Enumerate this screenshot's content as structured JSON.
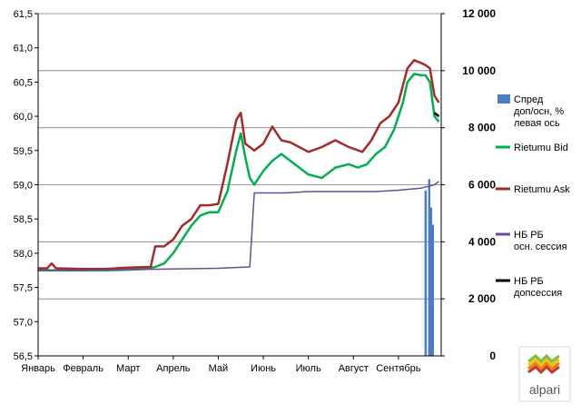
{
  "chart_data": {
    "type": "line",
    "x_categories": [
      "Январь",
      "Февраль",
      "Март",
      "Апрель",
      "Май",
      "Июнь",
      "Июль",
      "Август",
      "Сентябрь"
    ],
    "y_left": {
      "range": [
        56.5,
        61.5
      ],
      "ticks": [
        "56,5",
        "57,0",
        "57,5",
        "58,0",
        "58,5",
        "59,0",
        "59,5",
        "60,0",
        "60,5",
        "61,0",
        "61,5"
      ]
    },
    "y_right": {
      "range": [
        0,
        12000
      ],
      "ticks": [
        "0",
        "2 000",
        "4 000",
        "6 000",
        "8 000",
        "10 000",
        "12 000"
      ]
    },
    "grid": "horizontal, right-axis ticks",
    "legend_position": "right",
    "series": [
      {
        "name": "Спред доп/осн, % левая ось",
        "axis": "right",
        "kind": "bar",
        "color": "#4a7ec0",
        "points": [
          [
            8.6,
            5800
          ],
          [
            8.68,
            6200
          ],
          [
            8.72,
            5200
          ],
          [
            8.76,
            4600
          ],
          [
            8.8,
            0
          ]
        ]
      },
      {
        "name": "Rietumu Bid",
        "axis": "left",
        "kind": "line",
        "color": "#00b050",
        "points": [
          [
            0,
            57.75
          ],
          [
            0.5,
            57.75
          ],
          [
            1,
            57.75
          ],
          [
            1.5,
            57.75
          ],
          [
            2,
            57.76
          ],
          [
            2.4,
            57.77
          ],
          [
            2.6,
            57.8
          ],
          [
            2.8,
            57.85
          ],
          [
            3,
            58.0
          ],
          [
            3.2,
            58.2
          ],
          [
            3.4,
            58.4
          ],
          [
            3.6,
            58.55
          ],
          [
            3.8,
            58.6
          ],
          [
            4.0,
            58.6
          ],
          [
            4.2,
            58.9
          ],
          [
            4.4,
            59.5
          ],
          [
            4.5,
            59.75
          ],
          [
            4.6,
            59.4
          ],
          [
            4.7,
            59.1
          ],
          [
            4.8,
            59.0
          ],
          [
            5.0,
            59.2
          ],
          [
            5.2,
            59.35
          ],
          [
            5.4,
            59.45
          ],
          [
            5.6,
            59.35
          ],
          [
            5.8,
            59.25
          ],
          [
            6.0,
            59.15
          ],
          [
            6.3,
            59.1
          ],
          [
            6.6,
            59.25
          ],
          [
            6.9,
            59.3
          ],
          [
            7.1,
            59.25
          ],
          [
            7.3,
            59.3
          ],
          [
            7.5,
            59.45
          ],
          [
            7.7,
            59.55
          ],
          [
            7.9,
            59.8
          ],
          [
            8.0,
            60.0
          ],
          [
            8.1,
            60.2
          ],
          [
            8.2,
            60.5
          ],
          [
            8.35,
            60.62
          ],
          [
            8.5,
            60.6
          ],
          [
            8.6,
            60.6
          ],
          [
            8.7,
            60.5
          ],
          [
            8.8,
            60.0
          ],
          [
            8.9,
            59.92
          ]
        ]
      },
      {
        "name": "Rietumu Ask",
        "axis": "left",
        "kind": "line",
        "color": "#a52a2a",
        "points": [
          [
            0,
            57.78
          ],
          [
            0.2,
            57.78
          ],
          [
            0.3,
            57.85
          ],
          [
            0.4,
            57.78
          ],
          [
            1,
            57.77
          ],
          [
            1.5,
            57.77
          ],
          [
            2,
            57.79
          ],
          [
            2.5,
            57.8
          ],
          [
            2.6,
            58.1
          ],
          [
            2.8,
            58.1
          ],
          [
            3.0,
            58.2
          ],
          [
            3.2,
            58.4
          ],
          [
            3.4,
            58.5
          ],
          [
            3.6,
            58.7
          ],
          [
            3.8,
            58.7
          ],
          [
            4.0,
            58.72
          ],
          [
            4.2,
            59.3
          ],
          [
            4.4,
            59.95
          ],
          [
            4.5,
            60.05
          ],
          [
            4.6,
            59.6
          ],
          [
            4.8,
            59.5
          ],
          [
            5.0,
            59.6
          ],
          [
            5.2,
            59.85
          ],
          [
            5.4,
            59.65
          ],
          [
            5.6,
            59.62
          ],
          [
            5.8,
            59.55
          ],
          [
            6.0,
            59.48
          ],
          [
            6.3,
            59.55
          ],
          [
            6.6,
            59.65
          ],
          [
            6.9,
            59.55
          ],
          [
            7.2,
            59.48
          ],
          [
            7.4,
            59.65
          ],
          [
            7.6,
            59.9
          ],
          [
            7.8,
            60.0
          ],
          [
            8.0,
            60.2
          ],
          [
            8.1,
            60.45
          ],
          [
            8.2,
            60.7
          ],
          [
            8.35,
            60.82
          ],
          [
            8.5,
            60.78
          ],
          [
            8.6,
            60.75
          ],
          [
            8.7,
            60.7
          ],
          [
            8.8,
            60.3
          ],
          [
            8.9,
            60.2
          ]
        ]
      },
      {
        "name": "НБ РБ осн. сессия",
        "axis": "left",
        "kind": "line",
        "color": "#6a4c9c",
        "points": [
          [
            0,
            57.75
          ],
          [
            1,
            57.75
          ],
          [
            2,
            57.76
          ],
          [
            3,
            57.77
          ],
          [
            4,
            57.78
          ],
          [
            4.7,
            57.8
          ],
          [
            4.8,
            58.88
          ],
          [
            5.5,
            58.88
          ],
          [
            6.0,
            58.9
          ],
          [
            7.0,
            58.9
          ],
          [
            7.5,
            58.9
          ],
          [
            8.0,
            58.92
          ],
          [
            8.5,
            58.95
          ],
          [
            8.8,
            59.0
          ],
          [
            8.9,
            59.05
          ]
        ]
      },
      {
        "name": "НБ РБ допсессия",
        "axis": "left",
        "kind": "line",
        "color": "#000000",
        "points": [
          [
            8.8,
            60.05
          ],
          [
            8.9,
            60.0
          ]
        ]
      }
    ]
  },
  "logo": {
    "text": "alpari"
  }
}
